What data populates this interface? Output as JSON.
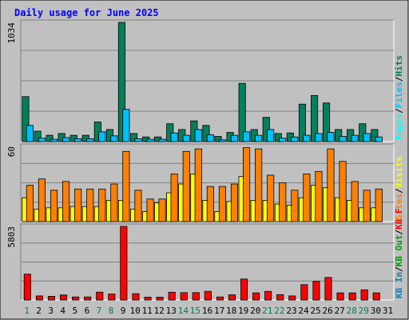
{
  "title": "Daily usage for June 2025",
  "colors": {
    "frame_bg": "#c0c0c0",
    "panel_bg": "#c0c0c0",
    "title": "#0000ff",
    "weekday_label": "#000000",
    "weekend_label": "#008040",
    "hits": "#00805c",
    "files": "#00bfff",
    "pages": "#00ffff",
    "visits": "#ffff00",
    "sites": "#ff8000",
    "kb_in": "#0080c0",
    "kb_out": "#00a000",
    "kb_f": "#ff0000"
  },
  "chart_data": [
    {
      "type": "bar",
      "panel": "hits-files-pages",
      "y_axis_label": "1034",
      "ylim": [
        0,
        1034
      ],
      "legend": [
        "Hits",
        "Files",
        "Pages"
      ],
      "legend_separator": "/",
      "categories": [
        "1",
        "2",
        "3",
        "4",
        "5",
        "6",
        "7",
        "8",
        "9",
        "10",
        "11",
        "12",
        "13",
        "14",
        "15",
        "16",
        "17",
        "18",
        "19",
        "20",
        "21",
        "22",
        "23",
        "24",
        "25",
        "26",
        "27",
        "28",
        "29",
        "30",
        "31"
      ],
      "weekend_days": [
        "1",
        "7",
        "8",
        "14",
        "15",
        "21",
        "22",
        "28",
        "29"
      ],
      "series": [
        {
          "name": "Hits",
          "values": [
            390,
            90,
            55,
            70,
            55,
            55,
            170,
            105,
            1034,
            70,
            40,
            40,
            155,
            105,
            180,
            140,
            45,
            80,
            505,
            105,
            210,
            70,
            75,
            325,
            400,
            335,
            105,
            105,
            155,
            105,
            0
          ]
        },
        {
          "name": "Files",
          "values": [
            140,
            30,
            20,
            35,
            25,
            25,
            85,
            50,
            280,
            25,
            20,
            20,
            75,
            55,
            105,
            60,
            15,
            55,
            85,
            55,
            105,
            30,
            40,
            55,
            70,
            80,
            45,
            55,
            70,
            40,
            0
          ]
        }
      ]
    },
    {
      "type": "bar",
      "panel": "visits-sites",
      "y_axis_label": "60",
      "ylim": [
        0,
        60
      ],
      "legend": [
        "Visits",
        "Sites"
      ],
      "legend_separator": "/",
      "categories": [
        "1",
        "2",
        "3",
        "4",
        "5",
        "6",
        "7",
        "8",
        "9",
        "10",
        "11",
        "12",
        "13",
        "14",
        "15",
        "16",
        "17",
        "18",
        "19",
        "20",
        "21",
        "22",
        "23",
        "24",
        "25",
        "26",
        "27",
        "28",
        "29",
        "30",
        "31"
      ],
      "series": [
        {
          "name": "Visits",
          "values": [
            19,
            10,
            11,
            11,
            12,
            12,
            12,
            17,
            17,
            10,
            8,
            15,
            23,
            30,
            38,
            17,
            8,
            16,
            36,
            17,
            17,
            14,
            13,
            19,
            29,
            27,
            19,
            17,
            11,
            11,
            0
          ]
        },
        {
          "name": "Sites",
          "values": [
            29,
            34,
            25,
            32,
            26,
            26,
            26,
            30,
            56,
            25,
            18,
            18,
            38,
            56,
            58,
            28,
            28,
            30,
            59,
            58,
            37,
            31,
            25,
            38,
            40,
            58,
            48,
            32,
            25,
            26,
            0
          ]
        }
      ]
    },
    {
      "type": "bar",
      "panel": "kbf-kbout-kbin",
      "y_axis_label": "5803",
      "ylim": [
        0,
        5803
      ],
      "legend": [
        "KB F",
        "KB Out",
        "KB In"
      ],
      "legend_separator": "/",
      "categories": [
        "1",
        "2",
        "3",
        "4",
        "5",
        "6",
        "7",
        "8",
        "9",
        "10",
        "11",
        "12",
        "13",
        "14",
        "15",
        "16",
        "17",
        "18",
        "19",
        "20",
        "21",
        "22",
        "23",
        "24",
        "25",
        "26",
        "27",
        "28",
        "29",
        "30",
        "31"
      ],
      "series": [
        {
          "name": "KB F",
          "values": [
            2040,
            320,
            290,
            400,
            240,
            240,
            620,
            470,
            5803,
            500,
            220,
            220,
            610,
            580,
            580,
            680,
            240,
            410,
            1650,
            560,
            680,
            420,
            320,
            1210,
            1470,
            1780,
            560,
            560,
            800,
            560,
            0
          ]
        }
      ]
    }
  ]
}
